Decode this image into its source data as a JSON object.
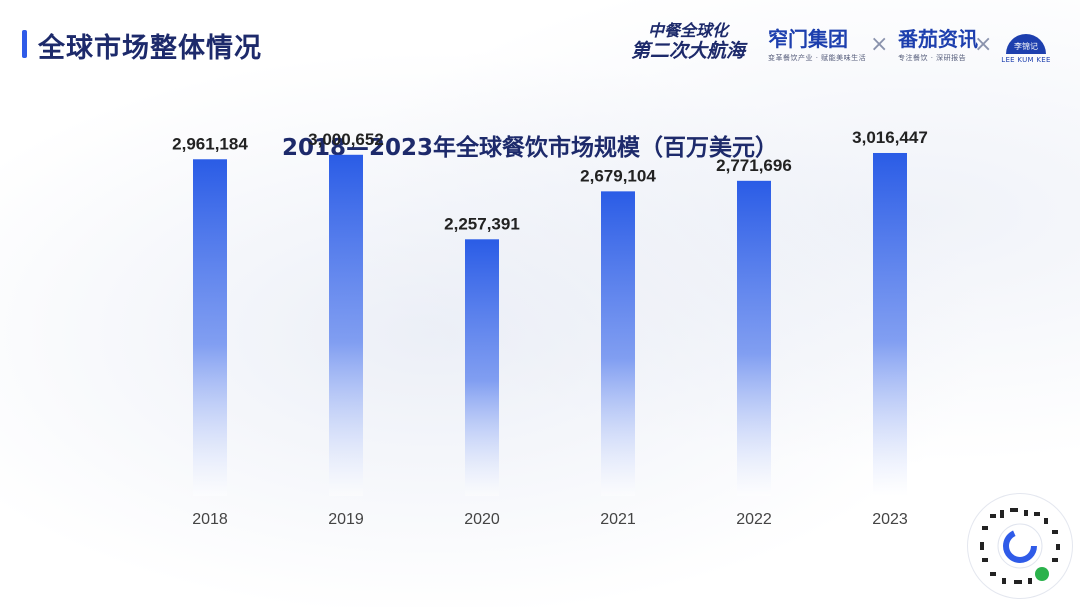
{
  "header": {
    "page_title": "全球市场整体情况",
    "slogan_line1": "中餐全球化",
    "slogan_line2": "第二次大航海",
    "brand1_name": "窄门集团",
    "brand1_sub": "变革餐饮产业 · 赋能美味生活",
    "brand2_name": "番茄资讯",
    "brand2_sub": "专注餐饮 · 深研报告",
    "brand3_name": "李锦记",
    "brand3_sub": "LEE KUM KEE",
    "cross_mark": "×"
  },
  "colors": {
    "title": "#1d2a6b",
    "accent": "#2f5be8",
    "bar_top": "#2a5ce6",
    "bar_bottom": "#ffffff"
  },
  "chart_data": {
    "type": "bar",
    "title": "2018—2023年全球餐饮市场规模（百万美元）",
    "categories": [
      "2018",
      "2019",
      "2020",
      "2021",
      "2022",
      "2023"
    ],
    "values": [
      2961184,
      3000652,
      2257391,
      2679104,
      2771696,
      3016447
    ],
    "data_labels": [
      "2,961,184",
      "3,000,652",
      "2,257,391",
      "2,679,104",
      "2,771,696",
      "3,016,447"
    ],
    "ylim": [
      0,
      3500000
    ],
    "grid": false,
    "legend": "none",
    "xlabel": "",
    "ylabel": ""
  }
}
